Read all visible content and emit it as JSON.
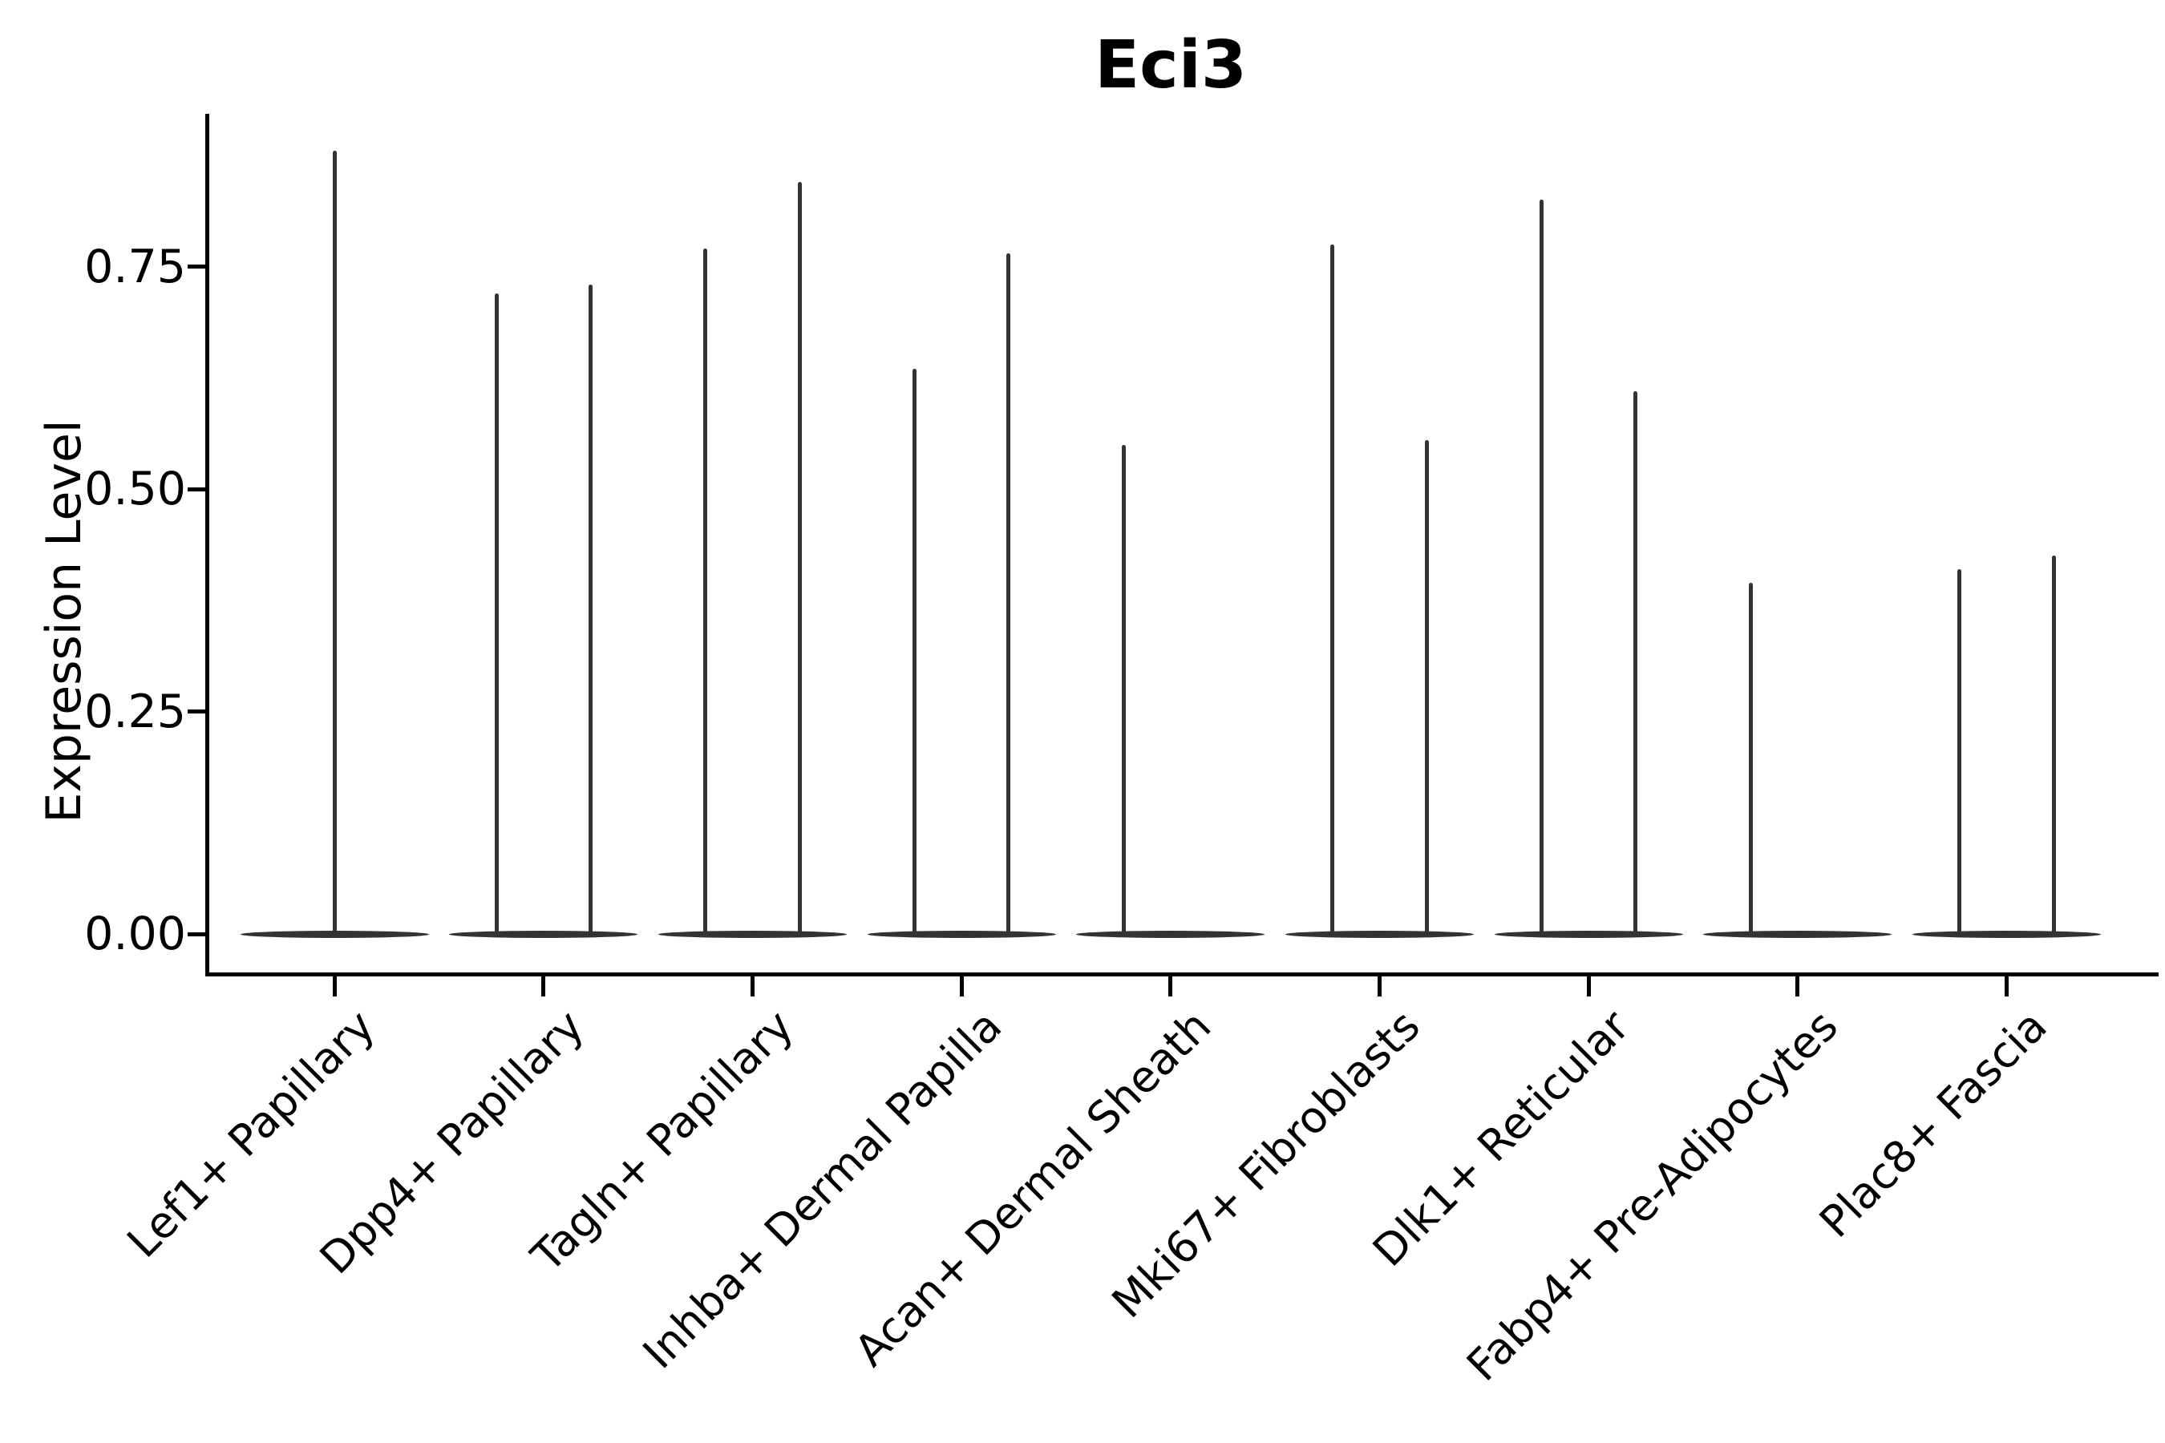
{
  "title": "Eci3",
  "axes": {
    "y_label": "Expression Level",
    "y_ticks": [
      {
        "label": "0.00",
        "value": 0.0
      },
      {
        "label": "0.25",
        "value": 0.25
      },
      {
        "label": "0.50",
        "value": 0.5
      },
      {
        "label": "0.75",
        "value": 0.75
      }
    ]
  },
  "colors": {
    "violin": "#333333",
    "axis": "#000000",
    "background": "#ffffff"
  },
  "chart_data": {
    "type": "violin",
    "title": "Eci3",
    "xlabel": "",
    "ylabel": "Expression Level",
    "ylim": [
      0,
      0.92
    ],
    "grid": false,
    "legend_position": "none",
    "description": "Expression is concentrated at 0 in every category (wide flat violin base at y=0); each listed violin rises as a thin density needle to its maximum expression value.",
    "categories": [
      "Lef1+ Papillary",
      "Dpp4+ Papillary",
      "Tagln+ Papillary",
      "Inhba+ Dermal Papilla",
      "Acan+ Dermal Sheath",
      "Mki67+ Fibroblasts",
      "Dlk1+ Reticular",
      "Fabp4+ Pre-Adipocytes",
      "Plac8+ Fascia"
    ],
    "series": [
      {
        "category": "Lef1+ Papillary",
        "violins": [
          {
            "position": "center",
            "max": 0.88
          }
        ]
      },
      {
        "category": "Dpp4+ Papillary",
        "violins": [
          {
            "position": "left",
            "max": 0.72
          },
          {
            "position": "right",
            "max": 0.73
          }
        ]
      },
      {
        "category": "Tagln+ Papillary",
        "violins": [
          {
            "position": "left",
            "max": 0.77
          },
          {
            "position": "right",
            "max": 0.845
          }
        ]
      },
      {
        "category": "Inhba+ Dermal Papilla",
        "violins": [
          {
            "position": "left",
            "max": 0.635
          },
          {
            "position": "right",
            "max": 0.765
          }
        ]
      },
      {
        "category": "Acan+ Dermal Sheath",
        "violins": [
          {
            "position": "left",
            "max": 0.55
          }
        ]
      },
      {
        "category": "Mki67+ Fibroblasts",
        "violins": [
          {
            "position": "left",
            "max": 0.775
          },
          {
            "position": "right",
            "max": 0.555
          }
        ]
      },
      {
        "category": "Dlk1+ Reticular",
        "violins": [
          {
            "position": "left",
            "max": 0.825
          },
          {
            "position": "right",
            "max": 0.61
          }
        ]
      },
      {
        "category": "Fabp4+ Pre-Adipocytes",
        "violins": [
          {
            "position": "left",
            "max": 0.395
          }
        ]
      },
      {
        "category": "Plac8+ Fascia",
        "violins": [
          {
            "position": "left",
            "max": 0.41
          },
          {
            "position": "right",
            "max": 0.425
          }
        ]
      }
    ]
  }
}
